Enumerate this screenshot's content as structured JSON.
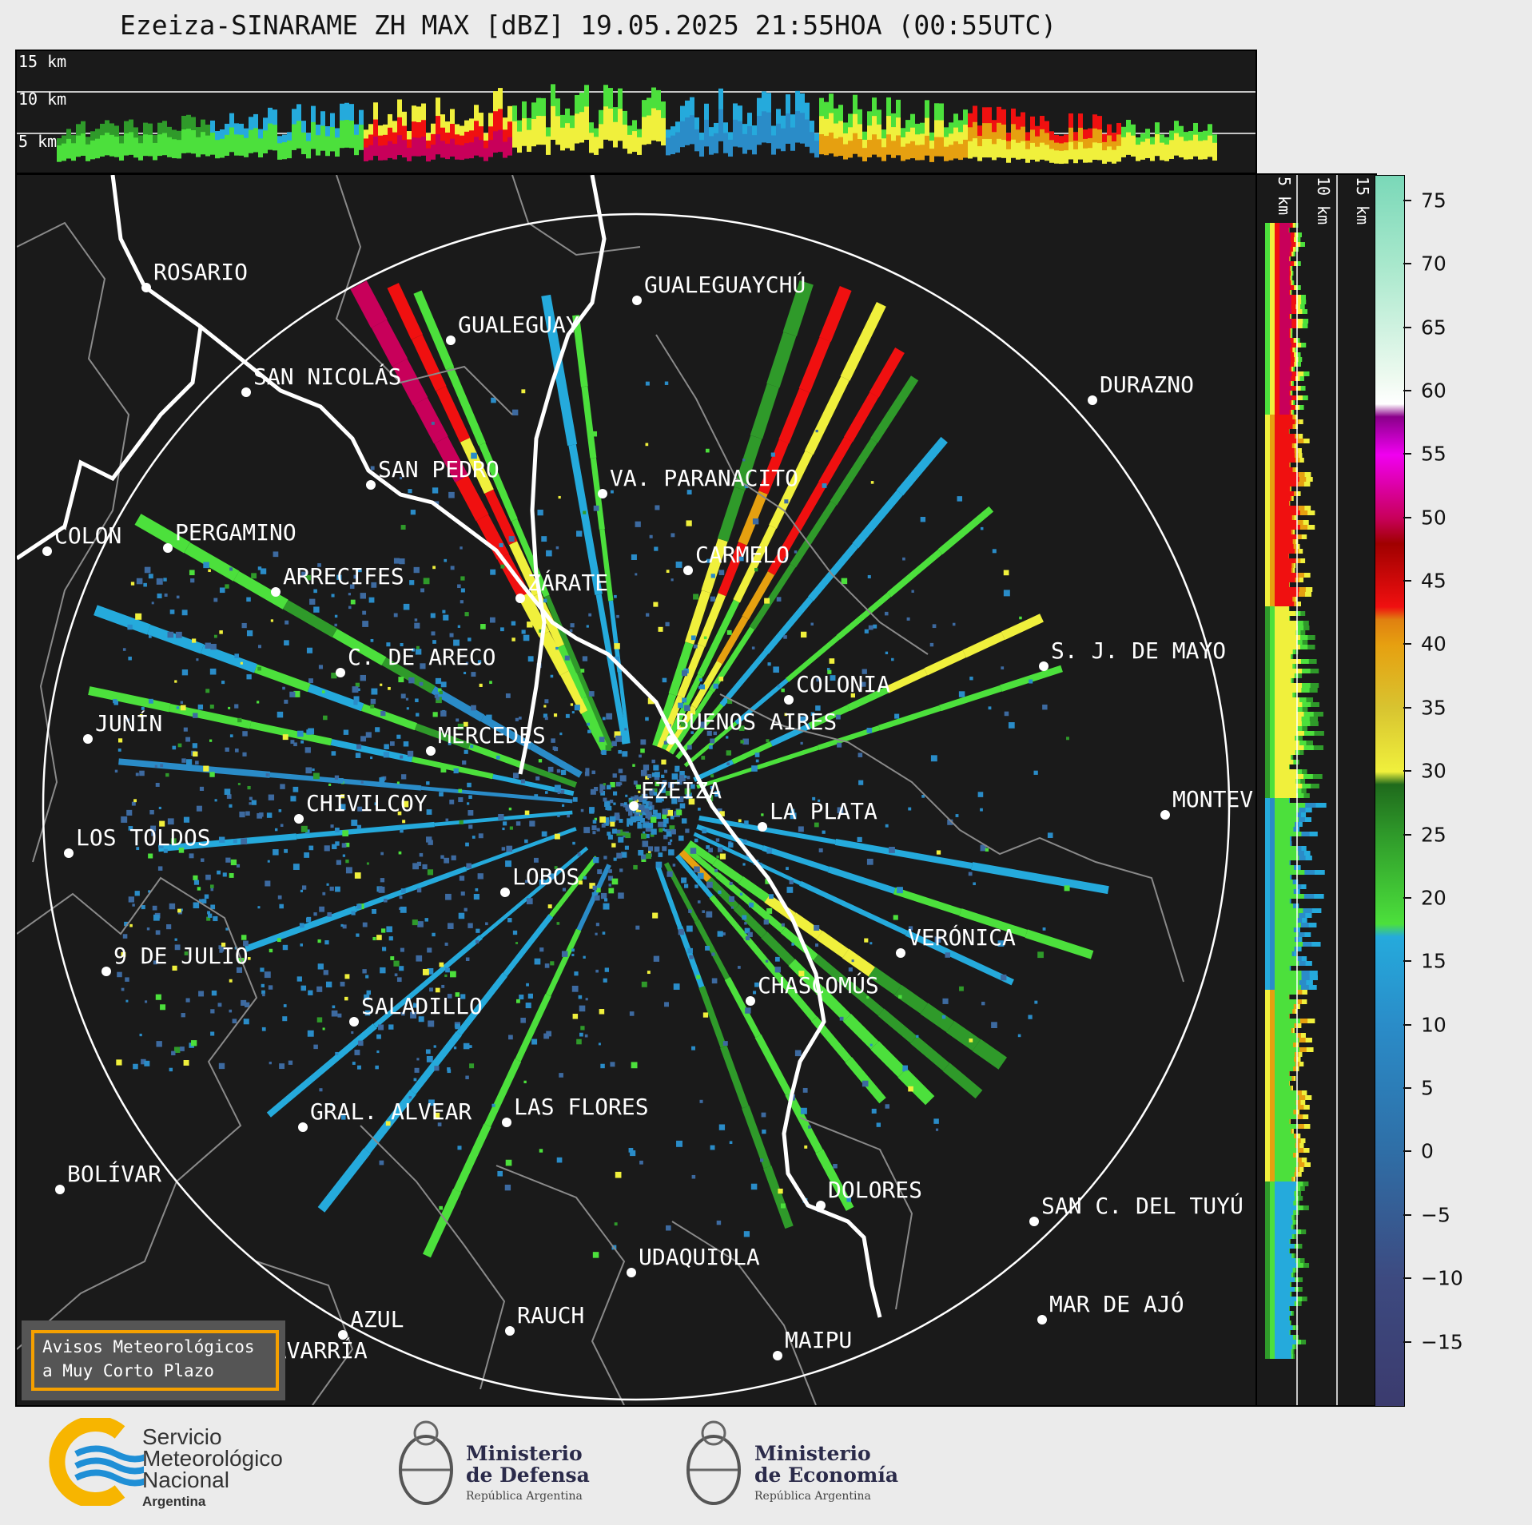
{
  "title": "Ezeiza-SINARAME ZH MAX [dBZ] 19.05.2025 21:55HOA (00:55UTC)",
  "height_labels": [
    "15 km",
    "10 km",
    "5 km"
  ],
  "cities": [
    {
      "name": "ROSARIO"
    },
    {
      "name": "GUALEGUAYCHÚ"
    },
    {
      "name": "GUALEGUAY"
    },
    {
      "name": "SAN NICOLÁS"
    },
    {
      "name": "DURAZNO"
    },
    {
      "name": "SAN PEDRO"
    },
    {
      "name": "VA. PARANACITO"
    },
    {
      "name": "COLON"
    },
    {
      "name": "PERGAMINO"
    },
    {
      "name": "CARMELO"
    },
    {
      "name": "ARRECIFES"
    },
    {
      "name": "ZÁRATE"
    },
    {
      "name": "C. DE ARECO"
    },
    {
      "name": "S. J. DE MAYO"
    },
    {
      "name": "COLONIA"
    },
    {
      "name": "JUNÍN"
    },
    {
      "name": "BUENOS AIRES"
    },
    {
      "name": "MERCEDES"
    },
    {
      "name": "EZEIZA"
    },
    {
      "name": "MONTEV"
    },
    {
      "name": "CHIVILCOY"
    },
    {
      "name": "LA PLATA"
    },
    {
      "name": "LOS TOLDOS"
    },
    {
      "name": "LOBOS"
    },
    {
      "name": "VERÓNICA"
    },
    {
      "name": "9 DE JULIO"
    },
    {
      "name": "CHASCOMÚS"
    },
    {
      "name": "SALADILLO"
    },
    {
      "name": "GRAL. ALVEAR"
    },
    {
      "name": "LAS FLORES"
    },
    {
      "name": "BOLÍVAR"
    },
    {
      "name": "DOLORES"
    },
    {
      "name": "SAN C. DEL TUYÚ"
    },
    {
      "name": "UDAQUIOLA"
    },
    {
      "name": "AZUL"
    },
    {
      "name": "RAUCH"
    },
    {
      "name": "MAR DE AJÓ"
    },
    {
      "name": "OLAVARRÍA"
    },
    {
      "name": "MAIPU"
    }
  ],
  "colorbar": {
    "min": -20,
    "max": 77,
    "ticks": [
      "75",
      "70",
      "65",
      "60",
      "55",
      "50",
      "45",
      "40",
      "35",
      "30",
      "25",
      "20",
      "15",
      "10",
      "5",
      "0",
      "−5",
      "−10",
      "−15"
    ],
    "tick_values": [
      75,
      70,
      65,
      60,
      55,
      50,
      45,
      40,
      35,
      30,
      25,
      20,
      15,
      10,
      5,
      0,
      -5,
      -10,
      -15
    ],
    "stops": [
      {
        "v": -20,
        "c": "#3b3b6e"
      },
      {
        "v": -10,
        "c": "#3d4a80"
      },
      {
        "v": 0,
        "c": "#2f6ea6"
      },
      {
        "v": 10,
        "c": "#2a8cc8"
      },
      {
        "v": 17,
        "c": "#25aadc"
      },
      {
        "v": 18,
        "c": "#4ce03c"
      },
      {
        "v": 25,
        "c": "#2f9a2a"
      },
      {
        "v": 29,
        "c": "#1f6a1c"
      },
      {
        "v": 30,
        "c": "#f0f03c"
      },
      {
        "v": 35,
        "c": "#d8c430"
      },
      {
        "v": 40,
        "c": "#e6a010"
      },
      {
        "v": 42,
        "c": "#e08010"
      },
      {
        "v": 43,
        "c": "#f01010"
      },
      {
        "v": 48,
        "c": "#a00000"
      },
      {
        "v": 50,
        "c": "#c8005a"
      },
      {
        "v": 55,
        "c": "#f000f0"
      },
      {
        "v": 58,
        "c": "#8a008a"
      },
      {
        "v": 59,
        "c": "#ffffff"
      },
      {
        "v": 61,
        "c": "#eefaf0"
      },
      {
        "v": 70,
        "c": "#a8e8cc"
      },
      {
        "v": 77,
        "c": "#7ad8b8"
      }
    ]
  },
  "avisos": {
    "line1": "Avisos Meteorológicos",
    "line2": "a Muy Corto Plazo"
  },
  "logos": {
    "smn": {
      "line1": "Servicio",
      "line2": "Meteorológico",
      "line3": "Nacional",
      "line4": "Argentina"
    },
    "defensa": {
      "line1": "Ministerio",
      "line2": "de Defensa",
      "line3": "República Argentina"
    },
    "economia": {
      "line1": "Ministerio",
      "line2": "de Economía",
      "line3": "República Argentina"
    }
  },
  "colors": {
    "panel_bg": "#1a1a1a",
    "accent_orange": "#f5a000",
    "smn_blue": "#1f8fd6",
    "smn_yellow": "#f7b500"
  }
}
